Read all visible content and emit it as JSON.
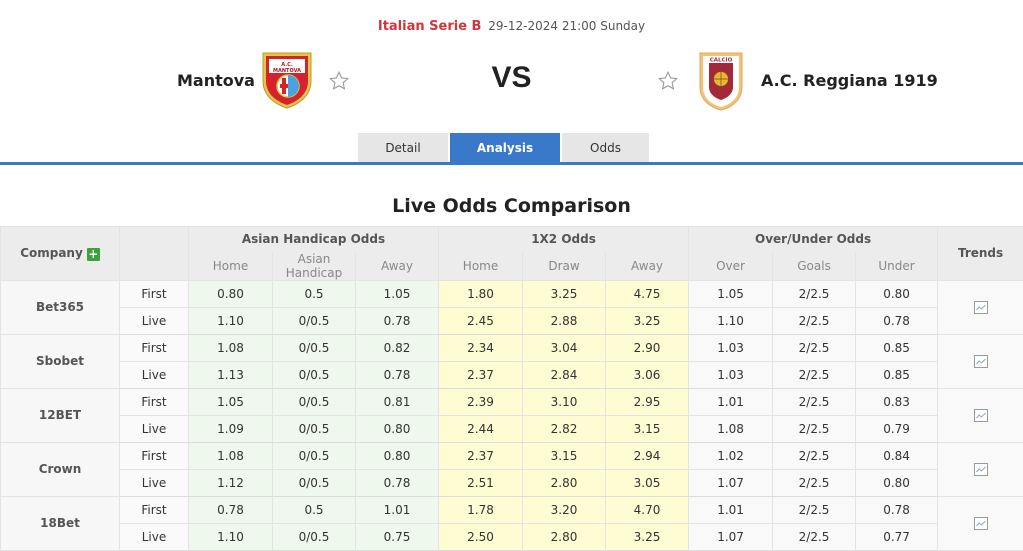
{
  "match": {
    "league": "Italian Serie B",
    "datetime": "29-12-2024 21:00 Sunday",
    "home_team": "Mantova",
    "away_team": "A.C. Reggiana 1919",
    "vs_label": "VS",
    "home_crest_text": "A.C. MANTOVA",
    "away_crest_text": "CALCIO REGGIANA"
  },
  "tabs": [
    {
      "label": "Detail",
      "active": false
    },
    {
      "label": "Analysis",
      "active": true
    },
    {
      "label": "Odds",
      "active": false
    }
  ],
  "section_title": "Live Odds Comparison",
  "table": {
    "company_header": "Company",
    "add_icon": "plus-icon",
    "groups": {
      "asian_handicap": "Asian Handicap Odds",
      "one_x_two": "1X2 Odds",
      "over_under": "Over/Under Odds",
      "trends": "Trends"
    },
    "subheaders": {
      "ah": [
        "Home",
        "Asian Handicap",
        "Away"
      ],
      "x12": [
        "Home",
        "Draw",
        "Away"
      ],
      "ou": [
        "Over",
        "Goals",
        "Under"
      ]
    },
    "colors": {
      "ah_bg": "#eef8ec",
      "x12_bg": "#fffbd3",
      "accent": "#3a78c9",
      "league": "#d2353a"
    },
    "companies": [
      {
        "name": "Bet365",
        "rows": [
          {
            "type": "First",
            "ah": [
              "0.80",
              "0.5",
              "1.05"
            ],
            "x12": [
              "1.80",
              "3.25",
              "4.75"
            ],
            "ou": [
              "1.05",
              "2/2.5",
              "0.80"
            ]
          },
          {
            "type": "Live",
            "ah": [
              "1.10",
              "0/0.5",
              "0.78"
            ],
            "x12": [
              "2.45",
              "2.88",
              "3.25"
            ],
            "ou": [
              "1.10",
              "2/2.5",
              "0.78"
            ]
          }
        ]
      },
      {
        "name": "Sbobet",
        "rows": [
          {
            "type": "First",
            "ah": [
              "1.08",
              "0/0.5",
              "0.82"
            ],
            "x12": [
              "2.34",
              "3.04",
              "2.90"
            ],
            "ou": [
              "1.03",
              "2/2.5",
              "0.85"
            ]
          },
          {
            "type": "Live",
            "ah": [
              "1.13",
              "0/0.5",
              "0.78"
            ],
            "x12": [
              "2.37",
              "2.84",
              "3.06"
            ],
            "ou": [
              "1.03",
              "2/2.5",
              "0.85"
            ]
          }
        ]
      },
      {
        "name": "12BET",
        "rows": [
          {
            "type": "First",
            "ah": [
              "1.05",
              "0/0.5",
              "0.81"
            ],
            "x12": [
              "2.39",
              "3.10",
              "2.95"
            ],
            "ou": [
              "1.01",
              "2/2.5",
              "0.83"
            ]
          },
          {
            "type": "Live",
            "ah": [
              "1.09",
              "0/0.5",
              "0.80"
            ],
            "x12": [
              "2.44",
              "2.82",
              "3.15"
            ],
            "ou": [
              "1.08",
              "2/2.5",
              "0.79"
            ]
          }
        ]
      },
      {
        "name": "Crown",
        "rows": [
          {
            "type": "First",
            "ah": [
              "1.08",
              "0/0.5",
              "0.80"
            ],
            "x12": [
              "2.37",
              "3.15",
              "2.94"
            ],
            "ou": [
              "1.02",
              "2/2.5",
              "0.84"
            ]
          },
          {
            "type": "Live",
            "ah": [
              "1.12",
              "0/0.5",
              "0.78"
            ],
            "x12": [
              "2.51",
              "2.80",
              "3.05"
            ],
            "ou": [
              "1.07",
              "2/2.5",
              "0.80"
            ]
          }
        ]
      },
      {
        "name": "18Bet",
        "rows": [
          {
            "type": "First",
            "ah": [
              "0.78",
              "0.5",
              "1.01"
            ],
            "x12": [
              "1.78",
              "3.20",
              "4.70"
            ],
            "ou": [
              "1.01",
              "2/2.5",
              "0.78"
            ]
          },
          {
            "type": "Live",
            "ah": [
              "1.10",
              "0/0.5",
              "0.75"
            ],
            "x12": [
              "2.50",
              "2.80",
              "3.25"
            ],
            "ou": [
              "1.07",
              "2/2.5",
              "0.77"
            ]
          }
        ]
      }
    ]
  }
}
